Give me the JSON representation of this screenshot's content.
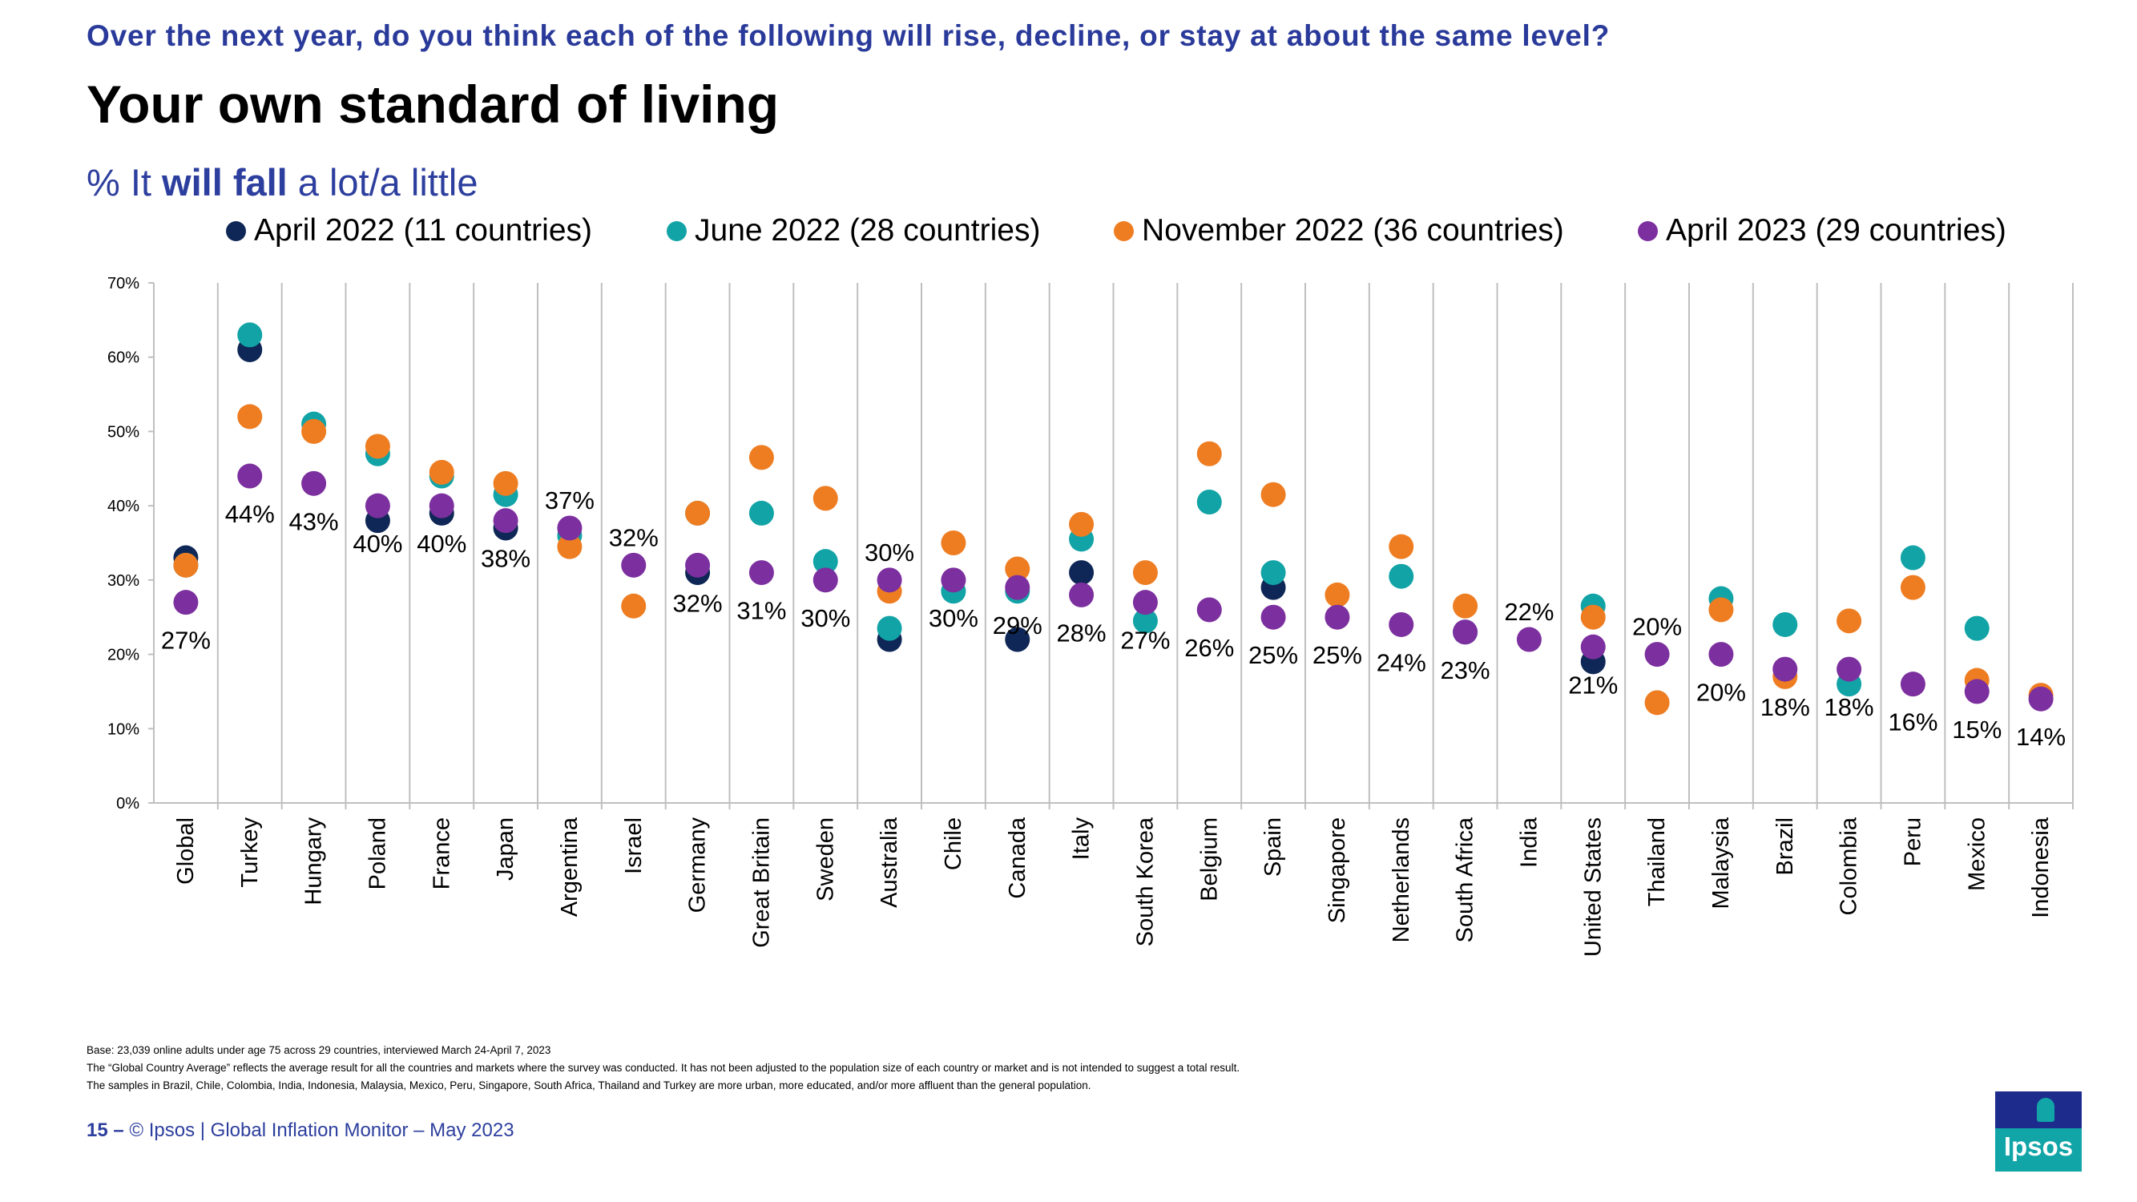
{
  "header": {
    "question": "Over the next year, do you think each of the following will rise, decline, or stay at about the same level?",
    "title": "Your own standard of living",
    "subtitle_prefix": "% It ",
    "subtitle_bold": "will fall",
    "subtitle_suffix": " a lot/a little"
  },
  "colors": {
    "april_2022": "#0f2756",
    "june_2022": "#12a3a6",
    "november_2022": "#ee7d22",
    "april_2023": "#7c2f9e"
  },
  "chart_data": {
    "type": "scatter",
    "ylim": [
      0,
      70
    ],
    "yticks": [
      0,
      10,
      20,
      30,
      40,
      50,
      60,
      70
    ],
    "ytick_labels": [
      "0%",
      "10%",
      "20%",
      "30%",
      "40%",
      "50%",
      "60%",
      "70%"
    ],
    "legend_position": "top",
    "categories": [
      "Global",
      "Turkey",
      "Hungary",
      "Poland",
      "France",
      "Japan",
      "Argentina",
      "Israel",
      "Germany",
      "Great Britain",
      "Sweden",
      "Australia",
      "Chile",
      "Canada",
      "Italy",
      "South Korea",
      "Belgium",
      "Spain",
      "Singapore",
      "Netherlands",
      "South Africa",
      "India",
      "United States",
      "Thailand",
      "Malaysia",
      "Brazil",
      "Colombia",
      "Peru",
      "Mexico",
      "Indonesia"
    ],
    "series": [
      {
        "name": "April 2022 (11 countries)",
        "key": "april_2022",
        "values": [
          33,
          61,
          null,
          38,
          39,
          37,
          null,
          null,
          31,
          null,
          null,
          22,
          null,
          22,
          31,
          null,
          null,
          29,
          null,
          null,
          null,
          null,
          19,
          null,
          null,
          null,
          null,
          null,
          null,
          null
        ]
      },
      {
        "name": "June 2022 (28 countries)",
        "key": "june_2022",
        "values": [
          32,
          63,
          51,
          47,
          44,
          41.5,
          36,
          null,
          39,
          39,
          32.5,
          23.5,
          28.5,
          28.5,
          35.5,
          24.5,
          40.5,
          31,
          null,
          30.5,
          23,
          null,
          26.5,
          null,
          27.5,
          24,
          16,
          33,
          23.5,
          null
        ]
      },
      {
        "name": "November 2022 (36 countries)",
        "key": "november_2022",
        "values": [
          32,
          52,
          50,
          48,
          44.5,
          43,
          34.5,
          26.5,
          39,
          46.5,
          41,
          28.5,
          35,
          31.5,
          37.5,
          31,
          47,
          41.5,
          28,
          34.5,
          26.5,
          null,
          25,
          13.5,
          26,
          17,
          24.5,
          29,
          16.5,
          14.5
        ]
      },
      {
        "name": "April 2023 (29 countries)",
        "key": "april_2023",
        "values": [
          27,
          44,
          43,
          40,
          40,
          38,
          37,
          32,
          32,
          31,
          30,
          30,
          30,
          29,
          28,
          27,
          26,
          25,
          25,
          24,
          23,
          22,
          21,
          20,
          20,
          18,
          18,
          16,
          15,
          14
        ]
      }
    ],
    "labels": [
      "27%",
      "44%",
      "43%",
      "40%",
      "40%",
      "38%",
      "37%",
      "32%",
      "32%",
      "31%",
      "30%",
      "30%",
      "30%",
      "29%",
      "28%",
      "27%",
      "26%",
      "25%",
      "25%",
      "24%",
      "23%",
      "22%",
      "21%",
      "20%",
      "20%",
      "18%",
      "18%",
      "16%",
      "15%",
      "14%"
    ]
  },
  "footnotes": {
    "base": "Base: 23,039 online adults under age 75 across 29 countries, interviewed March 24-April 7, 2023",
    "average": "The “Global Country Average” reflects the average result for all the countries and markets where the survey was conducted. It has not been adjusted to the population size of each country or market and is not intended to suggest a total result.",
    "samples": "The samples in Brazil, Chile, Colombia, India, Indonesia, Malaysia, Mexico, Peru, Singapore, South Africa, Thailand and Turkey are more urban, more educated, and/or more affluent than the general population."
  },
  "footer": {
    "page_number": "15 –",
    "text": "© Ipsos | Global Inflation Monitor – May 2023"
  },
  "logo": {
    "text": "Ipsos"
  }
}
